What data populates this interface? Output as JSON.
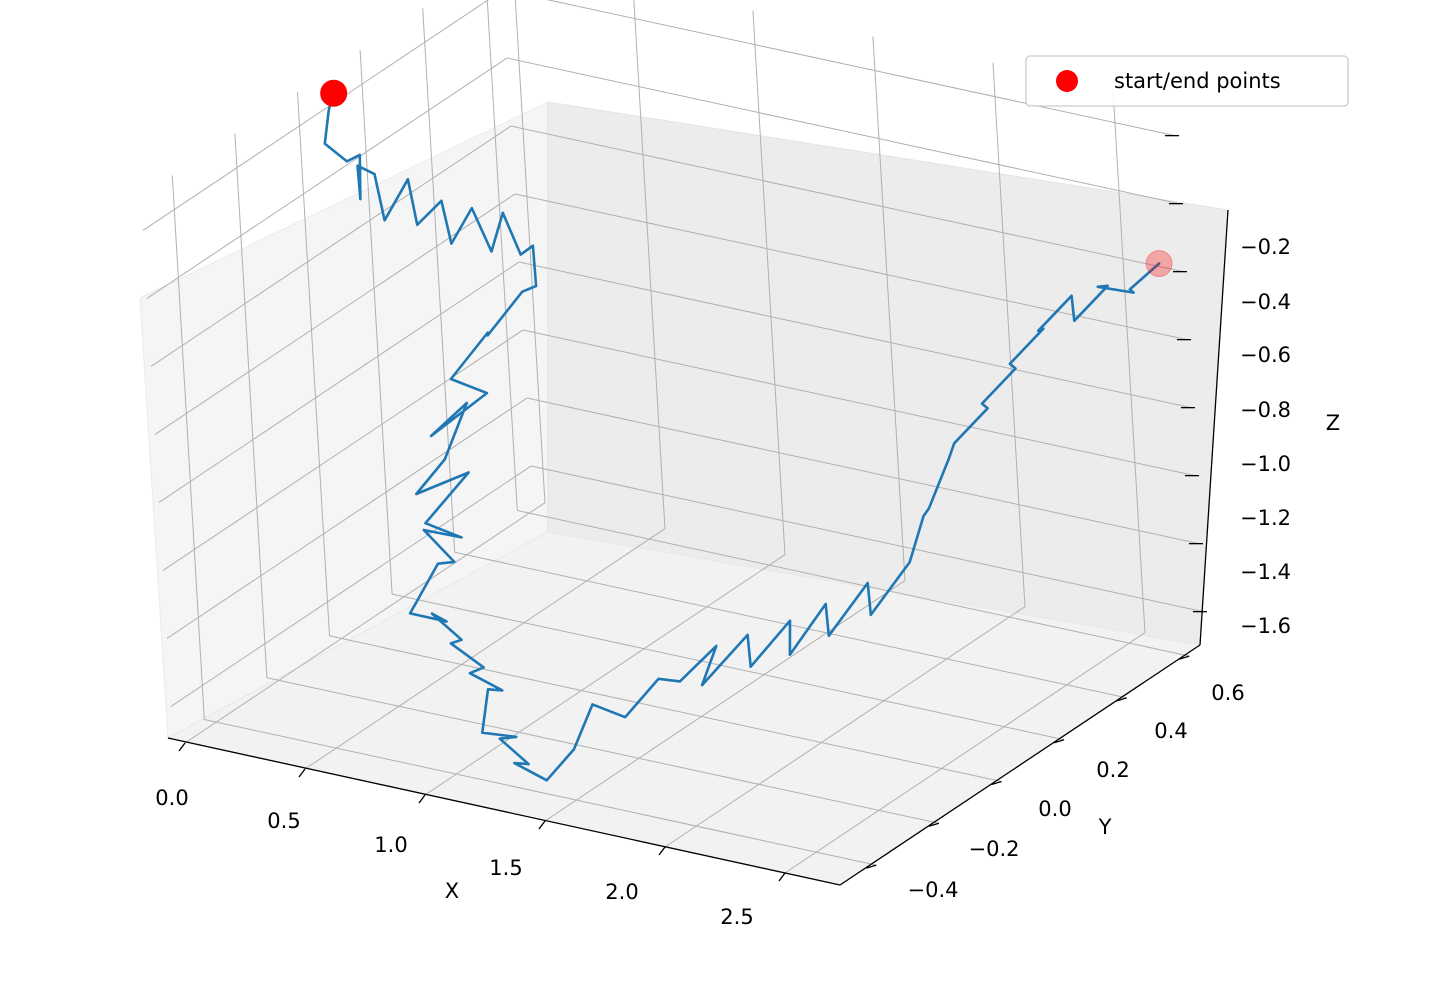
{
  "chart_data": {
    "type": "line",
    "projection": "3d",
    "title": "",
    "xlabel": "X",
    "ylabel": "Y",
    "zlabel": "Z",
    "x_ticks": [
      "0.0",
      "0.5",
      "1.0",
      "1.5",
      "2.0",
      "2.5"
    ],
    "y_ticks": [
      "−0.4",
      "−0.2",
      "0.0",
      "0.2",
      "0.4",
      "0.6"
    ],
    "z_ticks": [
      "−0.2",
      "−0.4",
      "−0.6",
      "−0.8",
      "−1.0",
      "−1.2",
      "−1.4",
      "−1.6"
    ],
    "xlim": [
      -0.05,
      2.75
    ],
    "ylim": [
      -0.5,
      0.65
    ],
    "zlim": [
      -1.7,
      -0.1
    ],
    "grid": true,
    "legend": {
      "position": "top-right",
      "entries": [
        "start/end points"
      ]
    },
    "series": [
      {
        "kind": "line",
        "color": "#1f77b4",
        "points": [
          [
            0.02,
            0.06,
            -0.13
          ],
          [
            0.05,
            0.02,
            -0.15
          ],
          [
            0.08,
            -0.02,
            -0.22
          ],
          [
            0.1,
            0.03,
            -0.3
          ],
          [
            0.06,
            0.1,
            -0.33
          ],
          [
            0.12,
            0.05,
            -0.42
          ],
          [
            0.02,
            0.12,
            -0.38
          ],
          [
            -0.02,
            0.2,
            -0.46
          ],
          [
            0.08,
            0.15,
            -0.55
          ],
          [
            0.01,
            0.28,
            -0.52
          ],
          [
            0.12,
            0.22,
            -0.6
          ],
          [
            0.05,
            0.35,
            -0.62
          ],
          [
            0.15,
            0.3,
            -0.7
          ],
          [
            0.08,
            0.42,
            -0.68
          ],
          [
            0.18,
            0.4,
            -0.78
          ],
          [
            0.1,
            0.5,
            -0.74
          ],
          [
            0.22,
            0.46,
            -0.82
          ],
          [
            0.15,
            0.55,
            -0.86
          ],
          [
            0.25,
            0.48,
            -0.92
          ],
          [
            0.3,
            0.4,
            -0.88
          ],
          [
            0.28,
            0.3,
            -0.95
          ],
          [
            0.35,
            0.25,
            -0.9
          ],
          [
            0.32,
            0.15,
            -0.98
          ],
          [
            0.4,
            0.2,
            -1.04
          ],
          [
            0.36,
            0.05,
            -1.08
          ],
          [
            0.45,
            0.1,
            -1.0
          ],
          [
            0.48,
            0.0,
            -1.1
          ],
          [
            0.42,
            -0.05,
            -1.18
          ],
          [
            0.55,
            0.02,
            -1.14
          ],
          [
            0.52,
            -0.1,
            -1.22
          ],
          [
            0.6,
            -0.05,
            -1.28
          ],
          [
            0.58,
            -0.15,
            -1.2
          ],
          [
            0.66,
            -0.12,
            -1.3
          ],
          [
            0.7,
            -0.2,
            -1.25
          ],
          [
            0.68,
            -0.28,
            -1.35
          ],
          [
            0.75,
            -0.22,
            -1.4
          ],
          [
            0.8,
            -0.3,
            -1.32
          ],
          [
            0.85,
            -0.25,
            -1.42
          ],
          [
            0.9,
            -0.32,
            -1.38
          ],
          [
            0.95,
            -0.26,
            -1.48
          ],
          [
            1.0,
            -0.34,
            -1.44
          ],
          [
            1.05,
            -0.28,
            -1.52
          ],
          [
            1.1,
            -0.36,
            -1.46
          ],
          [
            1.12,
            -0.4,
            -1.56
          ],
          [
            1.18,
            -0.34,
            -1.6
          ],
          [
            1.22,
            -0.42,
            -1.55
          ],
          [
            1.28,
            -0.38,
            -1.64
          ],
          [
            1.33,
            -0.46,
            -1.58
          ],
          [
            1.38,
            -0.4,
            -1.66
          ],
          [
            1.42,
            -0.34,
            -1.6
          ],
          [
            1.4,
            -0.26,
            -1.52
          ],
          [
            1.48,
            -0.22,
            -1.57
          ],
          [
            1.52,
            -0.14,
            -1.5
          ],
          [
            1.5,
            -0.06,
            -1.56
          ],
          [
            1.58,
            0.0,
            -1.48
          ],
          [
            1.62,
            -0.08,
            -1.54
          ],
          [
            1.66,
            0.04,
            -1.46
          ],
          [
            1.72,
            0.0,
            -1.52
          ],
          [
            1.76,
            0.1,
            -1.44
          ],
          [
            1.82,
            0.05,
            -1.5
          ],
          [
            1.86,
            0.14,
            -1.4
          ],
          [
            1.92,
            0.1,
            -1.46
          ],
          [
            1.96,
            0.2,
            -1.36
          ],
          [
            2.02,
            0.16,
            -1.42
          ],
          [
            2.06,
            0.26,
            -1.32
          ],
          [
            2.02,
            0.34,
            -1.24
          ],
          [
            2.1,
            0.3,
            -1.18
          ],
          [
            2.06,
            0.4,
            -1.1
          ],
          [
            2.14,
            0.36,
            -1.02
          ],
          [
            2.18,
            0.44,
            -0.96
          ],
          [
            2.24,
            0.38,
            -0.9
          ],
          [
            2.28,
            0.46,
            -0.84
          ],
          [
            2.34,
            0.4,
            -0.78
          ],
          [
            2.38,
            0.48,
            -0.72
          ],
          [
            2.44,
            0.42,
            -0.68
          ],
          [
            2.48,
            0.5,
            -0.62
          ],
          [
            2.54,
            0.46,
            -0.66
          ],
          [
            2.58,
            0.54,
            -0.6
          ],
          [
            2.62,
            0.48,
            -0.56
          ],
          [
            2.66,
            0.56,
            -0.62
          ],
          [
            2.7,
            0.52,
            -0.58
          ],
          [
            2.72,
            0.6,
            -0.55
          ]
        ]
      },
      {
        "kind": "scatter",
        "name": "start/end points",
        "color": "#ff0000",
        "points": [
          {
            "x": 0.02,
            "y": 0.06,
            "z": -0.13,
            "alpha": 1.0
          },
          {
            "x": 2.72,
            "y": 0.6,
            "z": -0.55,
            "alpha": 0.3
          }
        ]
      }
    ]
  }
}
